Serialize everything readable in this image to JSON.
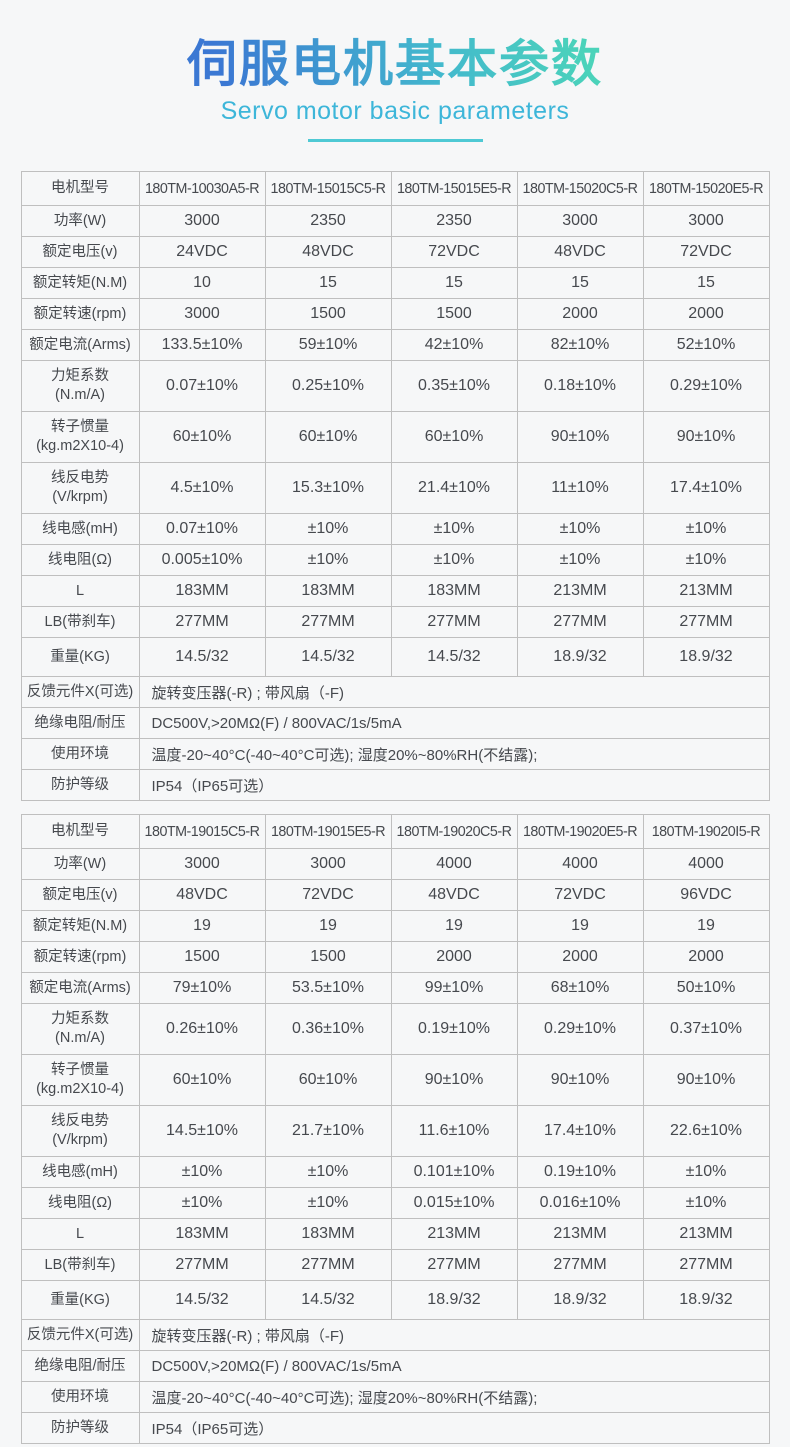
{
  "page": {
    "title": "伺服电机基本参数",
    "subtitle": "Servo motor basic parameters"
  },
  "colors": {
    "title_gradient_start": "#3b78d3",
    "title_gradient_end": "#4bd3ba",
    "subtitle": "#3db6d9",
    "underline": "#4fc9d4",
    "table_border": "#bfbfbf",
    "text": "#46494e",
    "background": "#f6f7f8"
  },
  "tables": [
    {
      "model_row_label": "电机型号",
      "models": [
        "180TM-10030A5-R",
        "180TM-15015C5-R",
        "180TM-15015E5-R",
        "180TM-15020C5-R",
        "180TM-15020E5-R"
      ],
      "spec_rows": [
        {
          "label": "功率(W)",
          "values": [
            "3000",
            "2350",
            "2350",
            "3000",
            "3000"
          ]
        },
        {
          "label": "额定电压(v)",
          "values": [
            "24VDC",
            "48VDC",
            "72VDC",
            "48VDC",
            "72VDC"
          ]
        },
        {
          "label": "额定转矩(N.M)",
          "values": [
            "10",
            "15",
            "15",
            "15",
            "15"
          ]
        },
        {
          "label": "额定转速(rpm)",
          "values": [
            "3000",
            "1500",
            "1500",
            "2000",
            "2000"
          ]
        },
        {
          "label": "额定电流(Arms)",
          "values": [
            "133.5±10%",
            "59±10%",
            "42±10%",
            "82±10%",
            "52±10%"
          ]
        },
        {
          "label": "力矩系数\n(N.m/A)",
          "values": [
            "0.07±10%",
            "0.25±10%",
            "0.35±10%",
            "0.18±10%",
            "0.29±10%"
          ]
        },
        {
          "label": "转子惯量\n(kg.m2X10-4)",
          "values": [
            "60±10%",
            "60±10%",
            "60±10%",
            "90±10%",
            "90±10%"
          ]
        },
        {
          "label": "线反电势\n(V/krpm)",
          "values": [
            "4.5±10%",
            "15.3±10%",
            "21.4±10%",
            "11±10%",
            "17.4±10%"
          ]
        },
        {
          "label": "线电感(mH)",
          "values": [
            "0.07±10%",
            "±10%",
            "±10%",
            "±10%",
            "±10%"
          ]
        },
        {
          "label": "线电阻(Ω)",
          "values": [
            "0.005±10%",
            "±10%",
            "±10%",
            "±10%",
            "±10%"
          ]
        },
        {
          "label": "L",
          "values": [
            "183MM",
            "183MM",
            "183MM",
            "213MM",
            "213MM"
          ]
        },
        {
          "label": "LB(带刹车)",
          "values": [
            "277MM",
            "277MM",
            "277MM",
            "277MM",
            "277MM"
          ]
        },
        {
          "label": "重量(KG)",
          "values": [
            "14.5/32",
            "14.5/32",
            "14.5/32",
            "18.9/32",
            "18.9/32"
          ]
        }
      ],
      "footer_rows": [
        {
          "label": "反馈元件X(可选)",
          "value": "旋转变压器(-R) ; 带风扇（-F)"
        },
        {
          "label": "绝缘电阻/耐压",
          "value": "DC500V,>20MΩ(F) / 800VAC/1s/5mA"
        },
        {
          "label": "使用环境",
          "value": "温度-20~40°C(-40~40°C可选); 湿度20%~80%RH(不结露);"
        },
        {
          "label": "防护等级",
          "value": "IP54（IP65可选）"
        }
      ]
    },
    {
      "model_row_label": "电机型号",
      "models": [
        "180TM-19015C5-R",
        "180TM-19015E5-R",
        "180TM-19020C5-R",
        "180TM-19020E5-R",
        "180TM-19020I5-R"
      ],
      "spec_rows": [
        {
          "label": "功率(W)",
          "values": [
            "3000",
            "3000",
            "4000",
            "4000",
            "4000"
          ]
        },
        {
          "label": "额定电压(v)",
          "values": [
            "48VDC",
            "72VDC",
            "48VDC",
            "72VDC",
            "96VDC"
          ]
        },
        {
          "label": "额定转矩(N.M)",
          "values": [
            "19",
            "19",
            "19",
            "19",
            "19"
          ]
        },
        {
          "label": "额定转速(rpm)",
          "values": [
            "1500",
            "1500",
            "2000",
            "2000",
            "2000"
          ]
        },
        {
          "label": "额定电流(Arms)",
          "values": [
            "79±10%",
            "53.5±10%",
            "99±10%",
            "68±10%",
            "50±10%"
          ]
        },
        {
          "label": "力矩系数\n(N.m/A)",
          "values": [
            "0.26±10%",
            "0.36±10%",
            "0.19±10%",
            "0.29±10%",
            "0.37±10%"
          ]
        },
        {
          "label": "转子惯量\n(kg.m2X10-4)",
          "values": [
            "60±10%",
            "60±10%",
            "90±10%",
            "90±10%",
            "90±10%"
          ]
        },
        {
          "label": "线反电势\n(V/krpm)",
          "values": [
            "14.5±10%",
            "21.7±10%",
            "11.6±10%",
            "17.4±10%",
            "22.6±10%"
          ]
        },
        {
          "label": "线电感(mH)",
          "values": [
            "±10%",
            "±10%",
            "0.101±10%",
            "0.19±10%",
            "±10%"
          ]
        },
        {
          "label": "线电阻(Ω)",
          "values": [
            "±10%",
            "±10%",
            "0.015±10%",
            "0.016±10%",
            "±10%"
          ]
        },
        {
          "label": "L",
          "values": [
            "183MM",
            "183MM",
            "213MM",
            "213MM",
            "213MM"
          ]
        },
        {
          "label": "LB(带刹车)",
          "values": [
            "277MM",
            "277MM",
            "277MM",
            "277MM",
            "277MM"
          ]
        },
        {
          "label": "重量(KG)",
          "values": [
            "14.5/32",
            "14.5/32",
            "18.9/32",
            "18.9/32",
            "18.9/32"
          ]
        }
      ],
      "footer_rows": [
        {
          "label": "反馈元件X(可选)",
          "value": "旋转变压器(-R) ; 带风扇（-F)"
        },
        {
          "label": "绝缘电阻/耐压",
          "value": "DC500V,>20MΩ(F) / 800VAC/1s/5mA"
        },
        {
          "label": "使用环境",
          "value": "温度-20~40°C(-40~40°C可选); 湿度20%~80%RH(不结露);"
        },
        {
          "label": "防护等级",
          "value": "IP54（IP65可选）"
        }
      ]
    }
  ]
}
